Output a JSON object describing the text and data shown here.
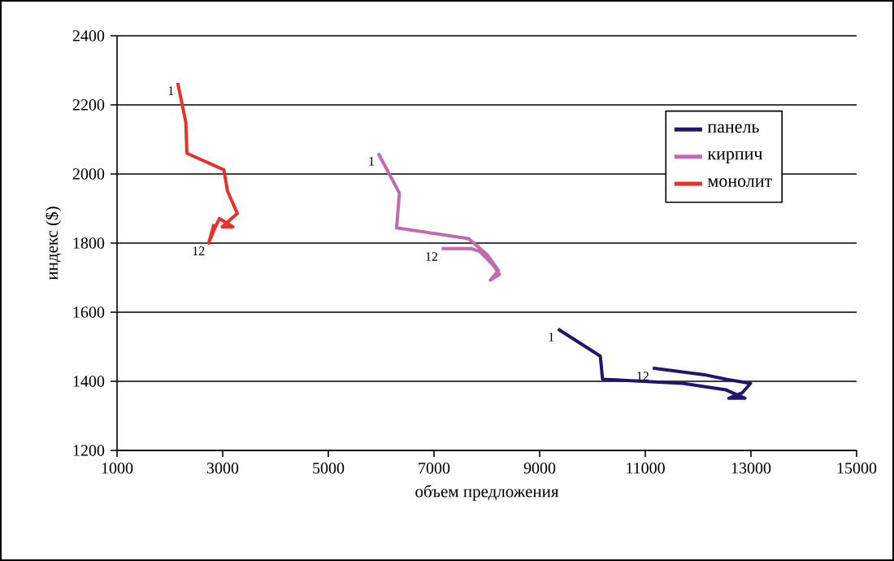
{
  "chart_data": {
    "type": "line",
    "xlabel": "объем предложения",
    "ylabel": "индекс ($)",
    "xlim": [
      1000,
      15000
    ],
    "ylim": [
      1200,
      2400
    ],
    "xticks": [
      1000,
      3000,
      5000,
      7000,
      9000,
      11000,
      13000,
      15000
    ],
    "yticks": [
      1200,
      1400,
      1600,
      1800,
      2000,
      2200,
      2400
    ],
    "grid": "y",
    "legend": "top right",
    "series": [
      {
        "name": "панель",
        "color": "#20166e",
        "x": [
          9348,
          10148,
          10191,
          11708,
          12529,
          12888,
          12580,
          12837,
          12991,
          12529,
          12120,
          11142
        ],
        "values": [
          1551,
          1473,
          1406,
          1394,
          1375,
          1351,
          1351,
          1367,
          1394,
          1406,
          1419,
          1438
        ]
      },
      {
        "name": "кирпич",
        "color": "#c06ab0",
        "x": [
          5945,
          6345,
          6292,
          7655,
          8015,
          8221,
          8067,
          8240,
          8117,
          7862,
          7708,
          7145
        ],
        "values": [
          2060,
          1945,
          1844,
          1813,
          1765,
          1721,
          1693,
          1709,
          1737,
          1776,
          1784,
          1784
        ]
      },
      {
        "name": "монолит",
        "color": "#e8312a",
        "x": [
          2148,
          2302,
          2323,
          3022,
          3092,
          3277,
          2990,
          3194,
          2938,
          2837,
          2733,
          2837
        ],
        "values": [
          2264,
          2149,
          2060,
          2012,
          1950,
          1886,
          1847,
          1847,
          1871,
          1839,
          1800,
          1855
        ]
      }
    ],
    "annotations": [
      {
        "text": "1",
        "x": 9348,
        "y": 1551
      },
      {
        "text": "12",
        "x": 11142,
        "y": 1438
      },
      {
        "text": "1",
        "x": 5945,
        "y": 2060
      },
      {
        "text": "12",
        "x": 7145,
        "y": 1784
      },
      {
        "text": "1",
        "x": 2148,
        "y": 2264
      },
      {
        "text": "12",
        "x": 2733,
        "y": 1800
      }
    ]
  }
}
